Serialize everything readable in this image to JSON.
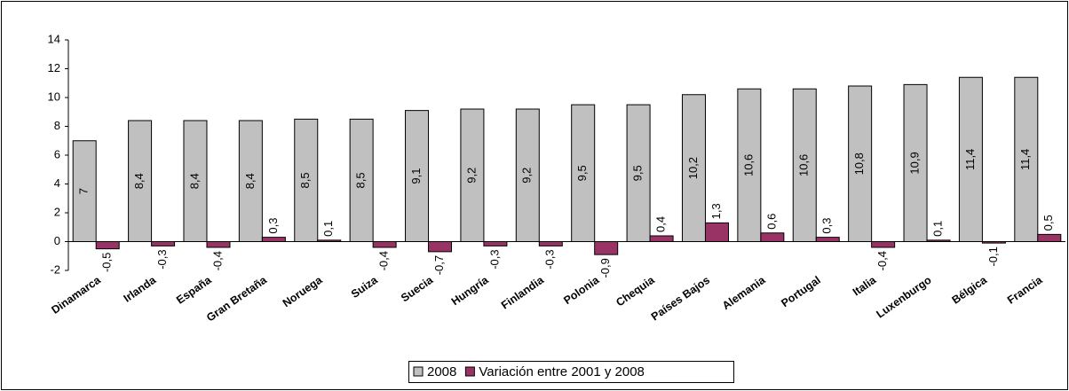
{
  "chart_data": {
    "type": "bar",
    "categories": [
      "Dinamarca",
      "Irlanda",
      "España",
      "Gran Bretaña",
      "Noruega",
      "Suiza",
      "Suecia",
      "Hungría",
      "Finlandia",
      "Polonia",
      "Chequia",
      "Países Bajos",
      "Alemania",
      "Portugal",
      "Italia",
      "Luxenburgo",
      "Bélgica",
      "Francia"
    ],
    "series": [
      {
        "name": "2008",
        "color": "#c0c0c0",
        "values": [
          7,
          8.4,
          8.4,
          8.4,
          8.5,
          8.5,
          9.1,
          9.2,
          9.2,
          9.5,
          9.5,
          10.2,
          10.6,
          10.6,
          10.8,
          10.9,
          11.4,
          11.4
        ],
        "value_labels": [
          "7",
          "8,4",
          "8,4",
          "8,4",
          "8,5",
          "8,5",
          "9,1",
          "9,2",
          "9,2",
          "9,5",
          "9,5",
          "10,2",
          "10,6",
          "10,6",
          "10,8",
          "10,9",
          "11,4",
          "11,4"
        ]
      },
      {
        "name": "Variación entre 2001 y 2008",
        "color": "#993366",
        "values": [
          -0.5,
          -0.3,
          -0.4,
          0.3,
          0.1,
          -0.4,
          -0.7,
          -0.3,
          -0.3,
          -0.9,
          0.4,
          1.3,
          0.6,
          0.3,
          -0.4,
          0.1,
          -0.1,
          0.5
        ],
        "value_labels": [
          "-0,5",
          "-0,3",
          "-0,4",
          "0,3",
          "0,1",
          "-0,4",
          "-0,7",
          "-0,3",
          "-0,3",
          "-0,9",
          "0,4",
          "1,3",
          "0,6",
          "0,3",
          "-0,4",
          "0,1",
          "-0,1",
          "0,5"
        ]
      }
    ],
    "ylim": [
      -2,
      14
    ],
    "yticks": [
      -2,
      0,
      2,
      4,
      6,
      8,
      10,
      12,
      14
    ],
    "grid": false,
    "legend": "bottom"
  }
}
